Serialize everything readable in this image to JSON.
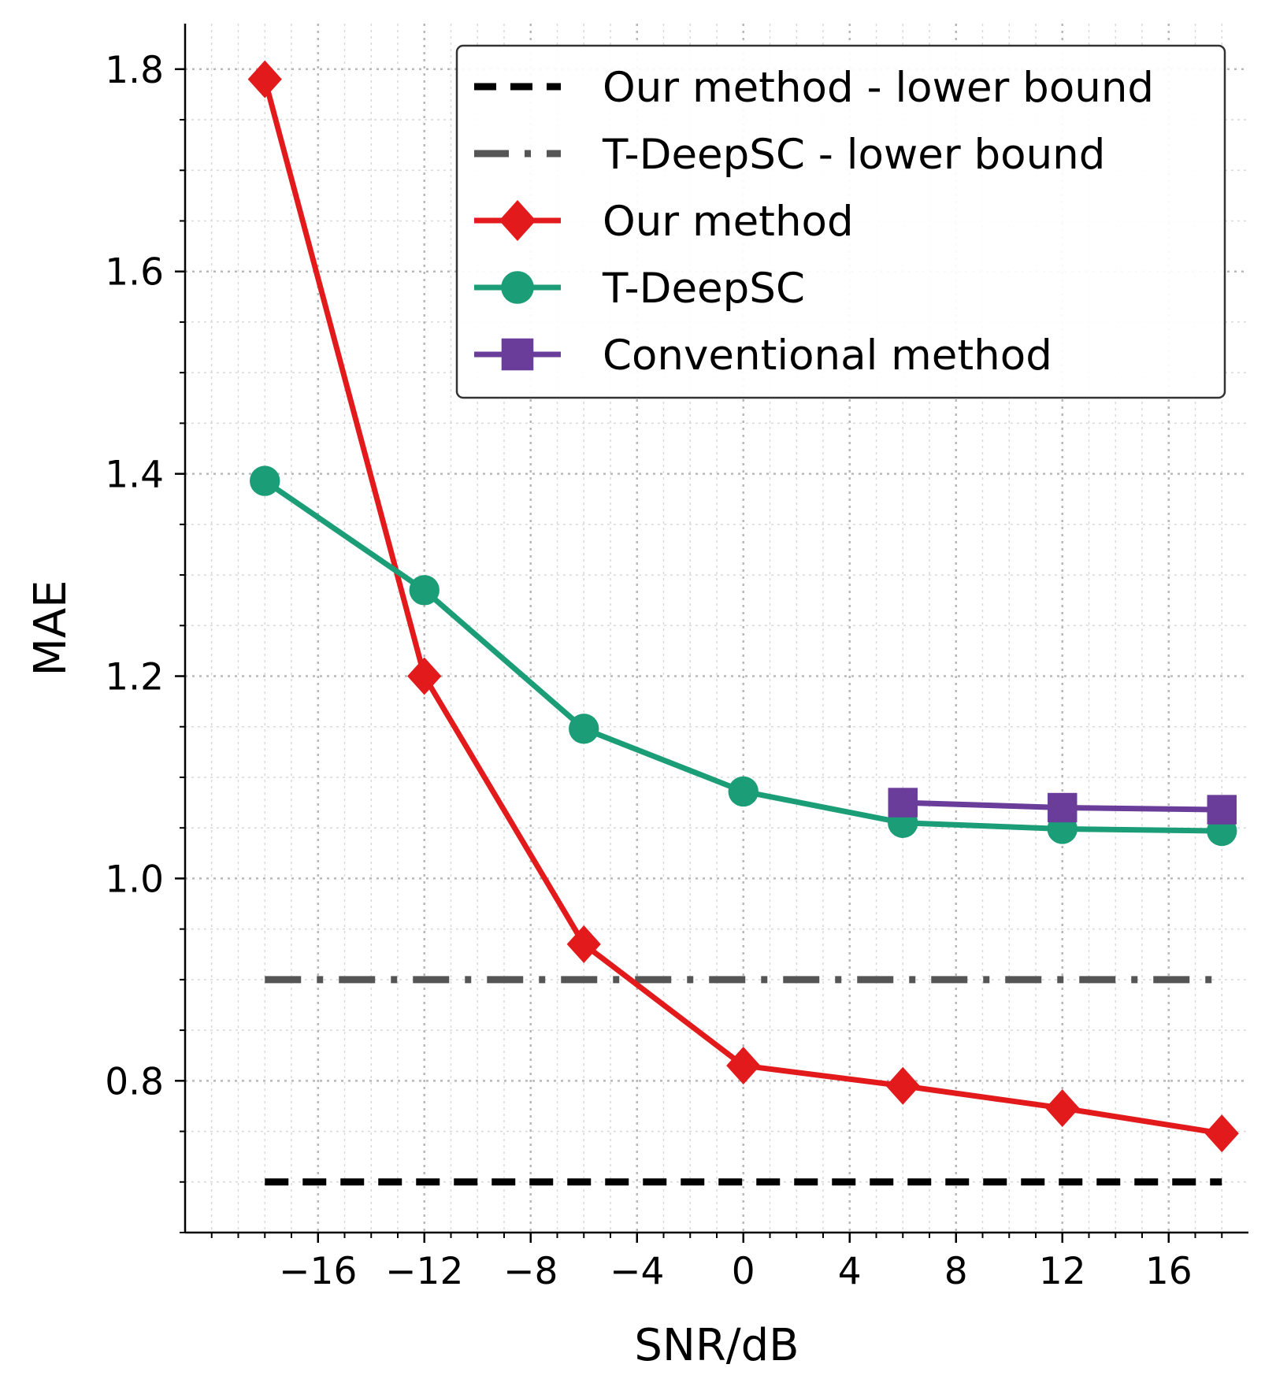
{
  "chart_data": {
    "type": "line",
    "xlabel": "SNR/dB",
    "ylabel": "MAE",
    "xlim": [
      -21,
      19
    ],
    "ylim": [
      0.65,
      1.845
    ],
    "xticks": [
      -16,
      -12,
      -8,
      -4,
      0,
      4,
      8,
      12,
      16
    ],
    "xtick_labels": [
      "−16",
      "−12",
      "−8",
      "−4",
      "0",
      "4",
      "8",
      "12",
      "16"
    ],
    "yticks": [
      0.8,
      1.0,
      1.2,
      1.4,
      1.6,
      1.8
    ],
    "ytick_labels": [
      "0.8",
      "1.0",
      "1.2",
      "1.4",
      "1.6",
      "1.8"
    ],
    "grid": true,
    "legend_position": "top-right",
    "series": [
      {
        "name": "Our method - lower bound",
        "color": "#000000",
        "style": "dashed",
        "marker": "none",
        "x": [
          -18,
          18
        ],
        "y": [
          0.7,
          0.7
        ]
      },
      {
        "name": "T-DeepSC - lower bound",
        "color": "#555555",
        "style": "dashdot",
        "marker": "none",
        "x": [
          -18,
          18
        ],
        "y": [
          0.9,
          0.9
        ]
      },
      {
        "name": "Our method",
        "color": "#e31a1c",
        "style": "solid",
        "marker": "diamond",
        "x": [
          -18,
          -12,
          -6,
          0,
          6,
          12,
          18
        ],
        "y": [
          1.79,
          1.2,
          0.935,
          0.815,
          0.795,
          0.773,
          0.748
        ]
      },
      {
        "name": "T-DeepSC",
        "color": "#1b9e77",
        "style": "solid",
        "marker": "circle",
        "x": [
          -18,
          -12,
          -6,
          0,
          6,
          12,
          18
        ],
        "y": [
          1.393,
          1.285,
          1.148,
          1.086,
          1.055,
          1.049,
          1.047
        ]
      },
      {
        "name": "Conventional method",
        "color": "#6a3d9a",
        "style": "solid",
        "marker": "square",
        "x": [
          6,
          12,
          18
        ],
        "y": [
          1.075,
          1.07,
          1.068
        ]
      }
    ]
  }
}
